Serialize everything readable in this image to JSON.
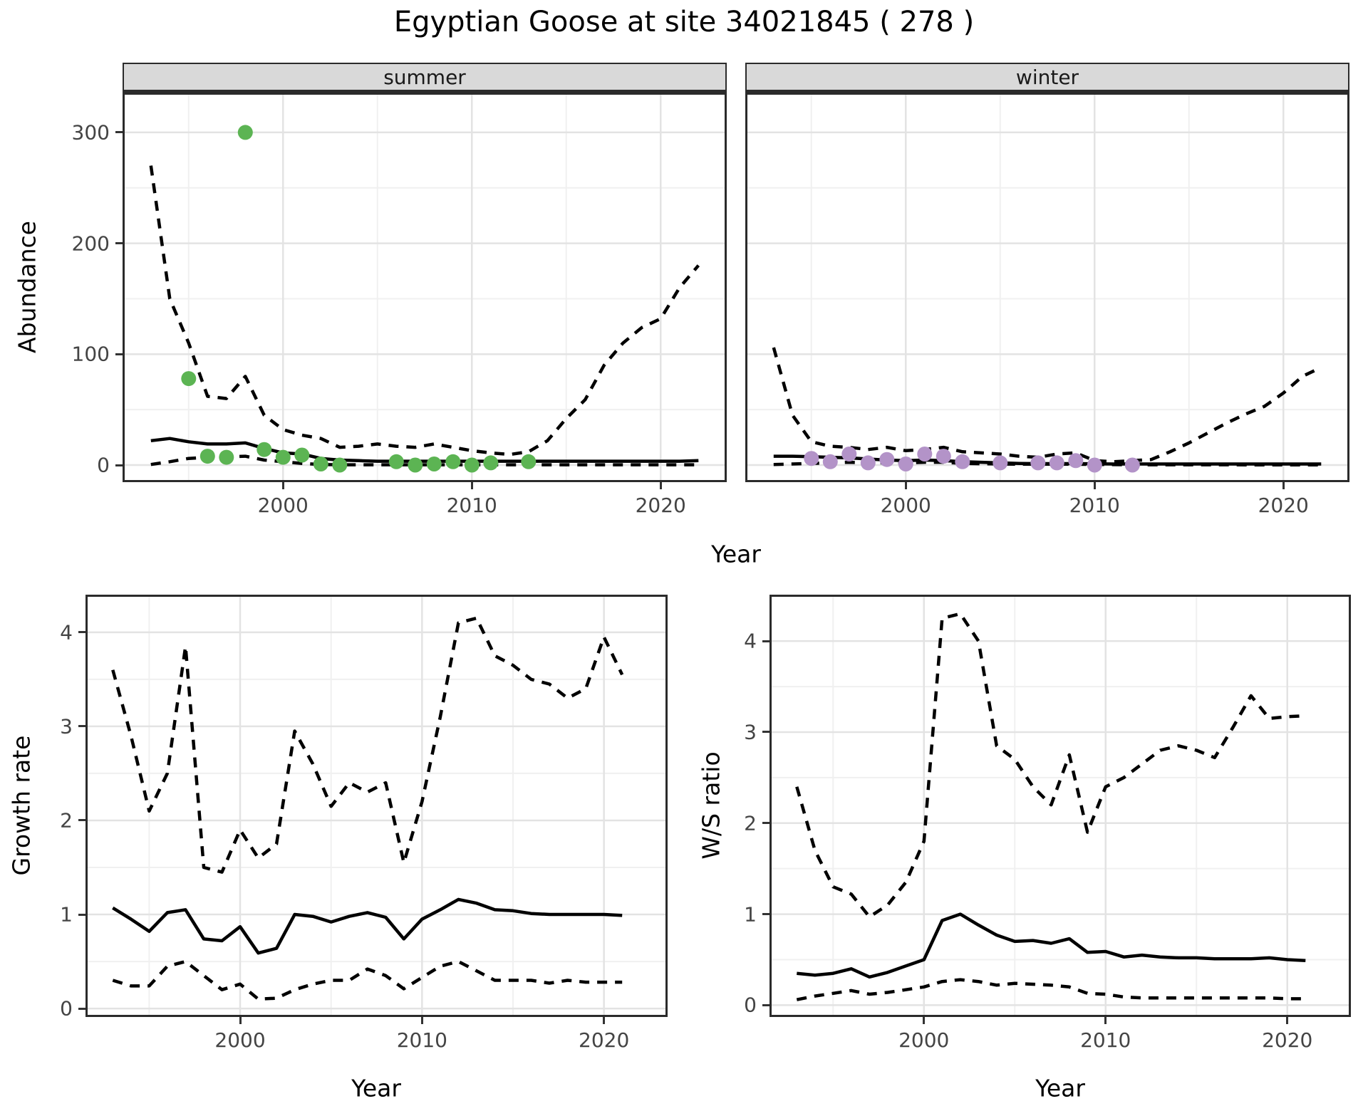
{
  "title": "Egyptian Goose at site 34021845 ( 278 )",
  "facets": [
    "summer",
    "winter"
  ],
  "axes": {
    "y_top": "Abundance",
    "x": "Year",
    "y_growth": "Growth rate",
    "y_ws": "W/S ratio"
  },
  "colors": {
    "line": "#000000",
    "summer_points": "#5cb453",
    "winter_points": "#b393c8",
    "strip_bg": "#d9d9d9",
    "panel_border": "#2b2b2b",
    "grid_major": "#e3e3e3",
    "grid_minor": "#f0f0f0",
    "tick_label": "#444444"
  },
  "chart_data": [
    {
      "id": "abundance-summer",
      "type": "line",
      "facet": "summer",
      "xlabel": "Year",
      "ylabel": "Abundance",
      "xlim": [
        1991.5,
        2023.5
      ],
      "ylim": [
        -15.4,
        335.9
      ],
      "xticks": [
        2000,
        2010,
        2020
      ],
      "yticks": [
        0,
        100,
        200,
        300
      ],
      "xminor": [
        1995,
        2005,
        2015
      ],
      "yminor": [
        50,
        150,
        250
      ],
      "legend": "none",
      "grid": true,
      "years": [
        1993,
        1994,
        1995,
        1996,
        1997,
        1998,
        1999,
        2000,
        2001,
        2002,
        2003,
        2004,
        2005,
        2006,
        2007,
        2008,
        2009,
        2010,
        2011,
        2012,
        2013,
        2014,
        2015,
        2016,
        2017,
        2018,
        2019,
        2020,
        2021,
        2022
      ],
      "series": [
        {
          "name": "estimate",
          "style": "solid",
          "values": [
            22,
            24,
            21,
            19,
            19,
            20,
            15,
            11,
            10,
            6,
            4.5,
            4,
            3.5,
            3.5,
            3.5,
            3.5,
            3.5,
            3.5,
            3.5,
            3.5,
            3.5,
            3.5,
            3.5,
            3.5,
            3.5,
            3.5,
            3.5,
            3.5,
            3.5,
            4
          ]
        },
        {
          "name": "upper-ci",
          "style": "dashed",
          "values": [
            270,
            150,
            110,
            62,
            60,
            80,
            45,
            32,
            27,
            24,
            16,
            17,
            19,
            17,
            16,
            19,
            16,
            13,
            11,
            9.5,
            12,
            22,
            42,
            59,
            90,
            110,
            124,
            132,
            160,
            180
          ]
        },
        {
          "name": "lower-ci",
          "style": "dashed",
          "values": [
            0.5,
            3,
            6,
            7,
            7.5,
            8,
            4.5,
            3,
            1.5,
            0.5,
            0.3,
            0.3,
            0.3,
            0.3,
            0.3,
            0.3,
            0.3,
            0.3,
            0.3,
            0.3,
            0.3,
            0.3,
            0.3,
            0.3,
            0.3,
            0.3,
            0.3,
            0.3,
            0.3,
            0.3
          ]
        }
      ],
      "points": {
        "name": "observed-counts-summer",
        "color": "#5cb453",
        "x": [
          1995,
          1996,
          1997,
          1998,
          1999,
          2000,
          2001,
          2002,
          2003,
          2006,
          2007,
          2008,
          2009,
          2010,
          2011,
          2013
        ],
        "y": [
          78,
          8,
          7,
          300,
          14,
          7,
          9,
          1,
          0,
          3,
          0,
          1,
          3,
          0,
          2,
          3
        ]
      }
    },
    {
      "id": "abundance-winter",
      "type": "line",
      "facet": "winter",
      "xlabel": "Year",
      "ylabel": "Abundance",
      "xlim": [
        1991.5,
        2023.5
      ],
      "ylim": [
        -15.4,
        335.9
      ],
      "xticks": [
        2000,
        2010,
        2020
      ],
      "yticks": [
        0,
        100,
        200,
        300
      ],
      "xminor": [
        1995,
        2005,
        2015
      ],
      "yminor": [
        50,
        150,
        250
      ],
      "legend": "none",
      "grid": true,
      "years": [
        1993,
        1994,
        1995,
        1996,
        1997,
        1998,
        1999,
        2000,
        2001,
        2002,
        2003,
        2004,
        2005,
        2006,
        2007,
        2008,
        2009,
        2010,
        2011,
        2012,
        2013,
        2014,
        2015,
        2016,
        2017,
        2018,
        2019,
        2020,
        2021,
        2022
      ],
      "series": [
        {
          "name": "estimate",
          "style": "solid",
          "values": [
            8,
            8,
            7.5,
            7,
            6.5,
            5.5,
            4.5,
            4,
            4.5,
            4,
            3,
            2.5,
            2,
            1.5,
            1.3,
            1.3,
            1.3,
            1.2,
            1,
            1,
            1,
            1,
            1,
            1,
            1,
            1,
            1,
            1,
            1,
            1
          ]
        },
        {
          "name": "upper-ci",
          "style": "dashed",
          "values": [
            106,
            45,
            21,
            17,
            16,
            14,
            16,
            13,
            14,
            16,
            12,
            11,
            10,
            8,
            7,
            10,
            11,
            4,
            3,
            4,
            5,
            12,
            20,
            29,
            38,
            46,
            53,
            65,
            80,
            88
          ]
        },
        {
          "name": "lower-ci",
          "style": "dashed",
          "values": [
            0.5,
            1,
            1.5,
            2,
            2.5,
            2,
            2,
            2,
            2.5,
            2.5,
            1.5,
            1.2,
            1,
            0.8,
            0.8,
            0.8,
            0.8,
            0.5,
            0.4,
            0.3,
            0.3,
            0.3,
            0.3,
            0.3,
            0.3,
            0.2,
            0.2,
            0.2,
            0.2,
            0.2
          ]
        }
      ],
      "points": {
        "name": "observed-counts-winter",
        "color": "#b393c8",
        "x": [
          1995,
          1996,
          1997,
          1998,
          1999,
          2000,
          2001,
          2002,
          2003,
          2005,
          2007,
          2008,
          2009,
          2010,
          2012
        ],
        "y": [
          6,
          3,
          10,
          2,
          5,
          1,
          10,
          8,
          3,
          2,
          2,
          2,
          4,
          0,
          0
        ]
      }
    },
    {
      "id": "growth-rate",
      "type": "line",
      "facet": null,
      "xlabel": "Year",
      "ylabel": "Growth rate",
      "xlim": [
        1991.5,
        2023.5
      ],
      "ylim": [
        -0.09,
        4.4
      ],
      "xticks": [
        2000,
        2010,
        2020
      ],
      "yticks": [
        0,
        1,
        2,
        3,
        4
      ],
      "xminor": [
        1995,
        2005,
        2015
      ],
      "yminor": [
        0.5,
        1.5,
        2.5,
        3.5
      ],
      "legend": "none",
      "grid": true,
      "years": [
        1993,
        1994,
        1995,
        1996,
        1997,
        1998,
        1999,
        2000,
        2001,
        2002,
        2003,
        2004,
        2005,
        2006,
        2007,
        2008,
        2009,
        2010,
        2011,
        2012,
        2013,
        2014,
        2015,
        2016,
        2017,
        2018,
        2019,
        2020,
        2021
      ],
      "series": [
        {
          "name": "estimate",
          "style": "solid",
          "values": [
            1.07,
            0.95,
            0.82,
            1.02,
            1.05,
            0.74,
            0.72,
            0.87,
            0.59,
            0.64,
            1.0,
            0.98,
            0.92,
            0.98,
            1.02,
            0.97,
            0.74,
            0.95,
            1.05,
            1.16,
            1.12,
            1.05,
            1.04,
            1.01,
            1.0,
            1.0,
            1.0,
            1.0,
            0.99
          ]
        },
        {
          "name": "upper-ci",
          "style": "dashed",
          "values": [
            3.6,
            2.9,
            2.1,
            2.5,
            3.85,
            1.5,
            1.45,
            1.9,
            1.6,
            1.75,
            2.95,
            2.6,
            2.15,
            2.4,
            2.3,
            2.4,
            1.55,
            2.2,
            3.1,
            4.1,
            4.15,
            3.75,
            3.65,
            3.5,
            3.45,
            3.3,
            3.4,
            3.95,
            3.55
          ]
        },
        {
          "name": "lower-ci",
          "style": "dashed",
          "values": [
            0.3,
            0.24,
            0.24,
            0.45,
            0.5,
            0.35,
            0.2,
            0.26,
            0.1,
            0.11,
            0.2,
            0.26,
            0.3,
            0.3,
            0.42,
            0.35,
            0.21,
            0.33,
            0.45,
            0.5,
            0.4,
            0.3,
            0.3,
            0.3,
            0.27,
            0.3,
            0.28,
            0.28,
            0.28
          ]
        }
      ],
      "points": null
    },
    {
      "id": "ws-ratio",
      "type": "line",
      "facet": null,
      "xlabel": "Year",
      "ylabel": "W/S ratio",
      "xlim": [
        1991.5,
        2023.5
      ],
      "ylim": [
        -0.13,
        4.51
      ],
      "xticks": [
        2000,
        2010,
        2020
      ],
      "yticks": [
        0,
        1,
        2,
        3,
        4
      ],
      "xminor": [
        1995,
        2005,
        2015
      ],
      "yminor": [
        0.5,
        1.5,
        2.5,
        3.5
      ],
      "legend": "none",
      "grid": true,
      "years": [
        1993,
        1994,
        1995,
        1996,
        1997,
        1998,
        1999,
        2000,
        2001,
        2002,
        2003,
        2004,
        2005,
        2006,
        2007,
        2008,
        2009,
        2010,
        2011,
        2012,
        2013,
        2014,
        2015,
        2016,
        2017,
        2018,
        2019,
        2020,
        2021
      ],
      "series": [
        {
          "name": "estimate",
          "style": "solid",
          "values": [
            0.35,
            0.33,
            0.35,
            0.4,
            0.31,
            0.36,
            0.43,
            0.5,
            0.93,
            1.0,
            0.88,
            0.77,
            0.7,
            0.71,
            0.68,
            0.73,
            0.58,
            0.59,
            0.53,
            0.55,
            0.53,
            0.52,
            0.52,
            0.51,
            0.51,
            0.51,
            0.52,
            0.5,
            0.49
          ]
        },
        {
          "name": "upper-ci",
          "style": "dashed",
          "values": [
            2.4,
            1.7,
            1.3,
            1.22,
            0.97,
            1.1,
            1.35,
            1.8,
            4.25,
            4.3,
            4.0,
            2.85,
            2.7,
            2.4,
            2.2,
            2.75,
            1.9,
            2.4,
            2.5,
            2.65,
            2.8,
            2.85,
            2.8,
            2.72,
            3.05,
            3.4,
            3.15,
            3.17,
            3.18
          ]
        },
        {
          "name": "lower-ci",
          "style": "dashed",
          "values": [
            0.06,
            0.1,
            0.13,
            0.16,
            0.12,
            0.14,
            0.17,
            0.2,
            0.26,
            0.28,
            0.26,
            0.22,
            0.24,
            0.23,
            0.22,
            0.2,
            0.13,
            0.12,
            0.09,
            0.08,
            0.08,
            0.08,
            0.08,
            0.08,
            0.08,
            0.08,
            0.08,
            0.07,
            0.07
          ]
        }
      ],
      "points": null
    }
  ]
}
